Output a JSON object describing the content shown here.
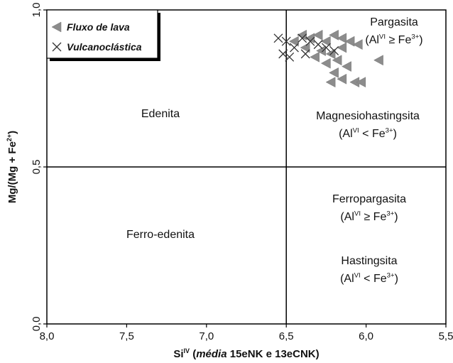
{
  "chart_data": {
    "type": "scatter",
    "xlabel": [
      "Si",
      {
        "sup": "IV"
      },
      " (",
      {
        "i": "média"
      },
      " 15eNK e 13eCNK)"
    ],
    "ylabel": [
      "Mg/(Mg + Fe",
      {
        "sup": "2+"
      },
      ")"
    ],
    "xlim": [
      8.0,
      5.5
    ],
    "ylim": [
      0.0,
      1.0
    ],
    "xticks": [
      {
        "value": 8.0,
        "label": "8,0"
      },
      {
        "value": 7.5,
        "label": "7,5"
      },
      {
        "value": 7.0,
        "label": "7,0"
      },
      {
        "value": 6.5,
        "label": "6,5"
      },
      {
        "value": 6.0,
        "label": "6,0"
      },
      {
        "value": 5.5,
        "label": "5,5"
      }
    ],
    "yticks": [
      {
        "value": 0.0,
        "label": "0,0"
      },
      {
        "value": 0.5,
        "label": "0,5"
      },
      {
        "value": 1.0,
        "label": "1,0"
      }
    ],
    "boundaries": {
      "x": [
        6.5
      ],
      "y": [
        0.5
      ]
    },
    "legend": "upper left",
    "regions": [
      [
        [
          "Pargasita"
        ],
        [
          "(Al",
          {
            "sup": "VI"
          },
          " ≥ Fe",
          {
            "sup": "3+"
          },
          ")"
        ]
      ],
      [
        [
          "Edenita"
        ]
      ],
      [
        [
          "Magnesiohastingsita"
        ],
        [
          "(Al",
          {
            "sup": "VI"
          },
          " < Fe",
          {
            "sup": "3+"
          },
          ")"
        ]
      ],
      [
        [
          "Ferropargasita"
        ],
        [
          "(Al",
          {
            "sup": "VI"
          },
          " ≥ Fe",
          {
            "sup": "3+"
          },
          ")"
        ]
      ],
      [
        [
          "Ferro-edenita"
        ]
      ],
      [
        [
          "Hastingsita"
        ],
        [
          "(Al",
          {
            "sup": "VI"
          },
          " < Fe",
          {
            "sup": "3+"
          },
          ")"
        ]
      ]
    ],
    "series": [
      {
        "name": "Fluxo de lava",
        "marker": "triangle-left",
        "color": "#8c8c8c",
        "x": [
          6.4,
          6.35,
          6.3,
          6.25,
          6.2,
          6.15,
          6.1,
          6.38,
          6.28,
          6.22,
          6.15,
          6.05,
          6.18,
          6.12,
          6.2,
          6.15,
          6.22,
          6.07,
          6.03,
          5.92,
          6.45,
          6.32,
          6.25
        ],
        "y": [
          0.92,
          0.91,
          0.92,
          0.9,
          0.92,
          0.91,
          0.9,
          0.88,
          0.87,
          0.86,
          0.88,
          0.89,
          0.84,
          0.82,
          0.8,
          0.78,
          0.77,
          0.77,
          0.77,
          0.84,
          0.9,
          0.85,
          0.83
        ]
      },
      {
        "name": "Vulcanoclástica",
        "marker": "x",
        "color": "#333333",
        "x": [
          6.55,
          6.5,
          6.45,
          6.52,
          6.4,
          6.38,
          6.3,
          6.25,
          6.2,
          6.35,
          6.48
        ],
        "y": [
          0.91,
          0.9,
          0.88,
          0.86,
          0.91,
          0.86,
          0.89,
          0.88,
          0.87,
          0.9,
          0.85
        ]
      }
    ]
  }
}
